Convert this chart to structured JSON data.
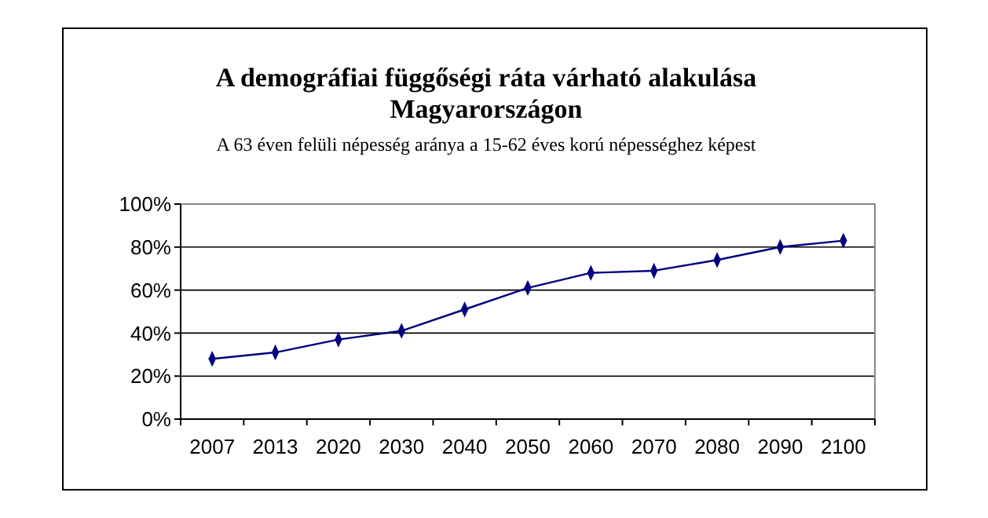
{
  "chart_data": {
    "type": "line",
    "title": "A demográfiai függőségi ráta várható alakulása Magyarországon",
    "subtitle": "A 63 éven felüli népesség aránya a 15-62 éves korú népességhez képest",
    "categories": [
      "2007",
      "2013",
      "2020",
      "2030",
      "2040",
      "2050",
      "2060",
      "2070",
      "2080",
      "2090",
      "2100"
    ],
    "series": [
      {
        "color": "#000080",
        "values": [
          28,
          31,
          37,
          41,
          51,
          61,
          68,
          69,
          74,
          80,
          83
        ]
      }
    ],
    "ylim": [
      0,
      100
    ],
    "yticks": [
      {
        "value": 0,
        "label": "0%"
      },
      {
        "value": 20,
        "label": "20%"
      },
      {
        "value": 40,
        "label": "40%"
      },
      {
        "value": 60,
        "label": "60%"
      },
      {
        "value": 80,
        "label": "80%"
      },
      {
        "value": 100,
        "label": "100%"
      }
    ],
    "grid": "y",
    "marker": "diamond",
    "line_style": "solid"
  }
}
